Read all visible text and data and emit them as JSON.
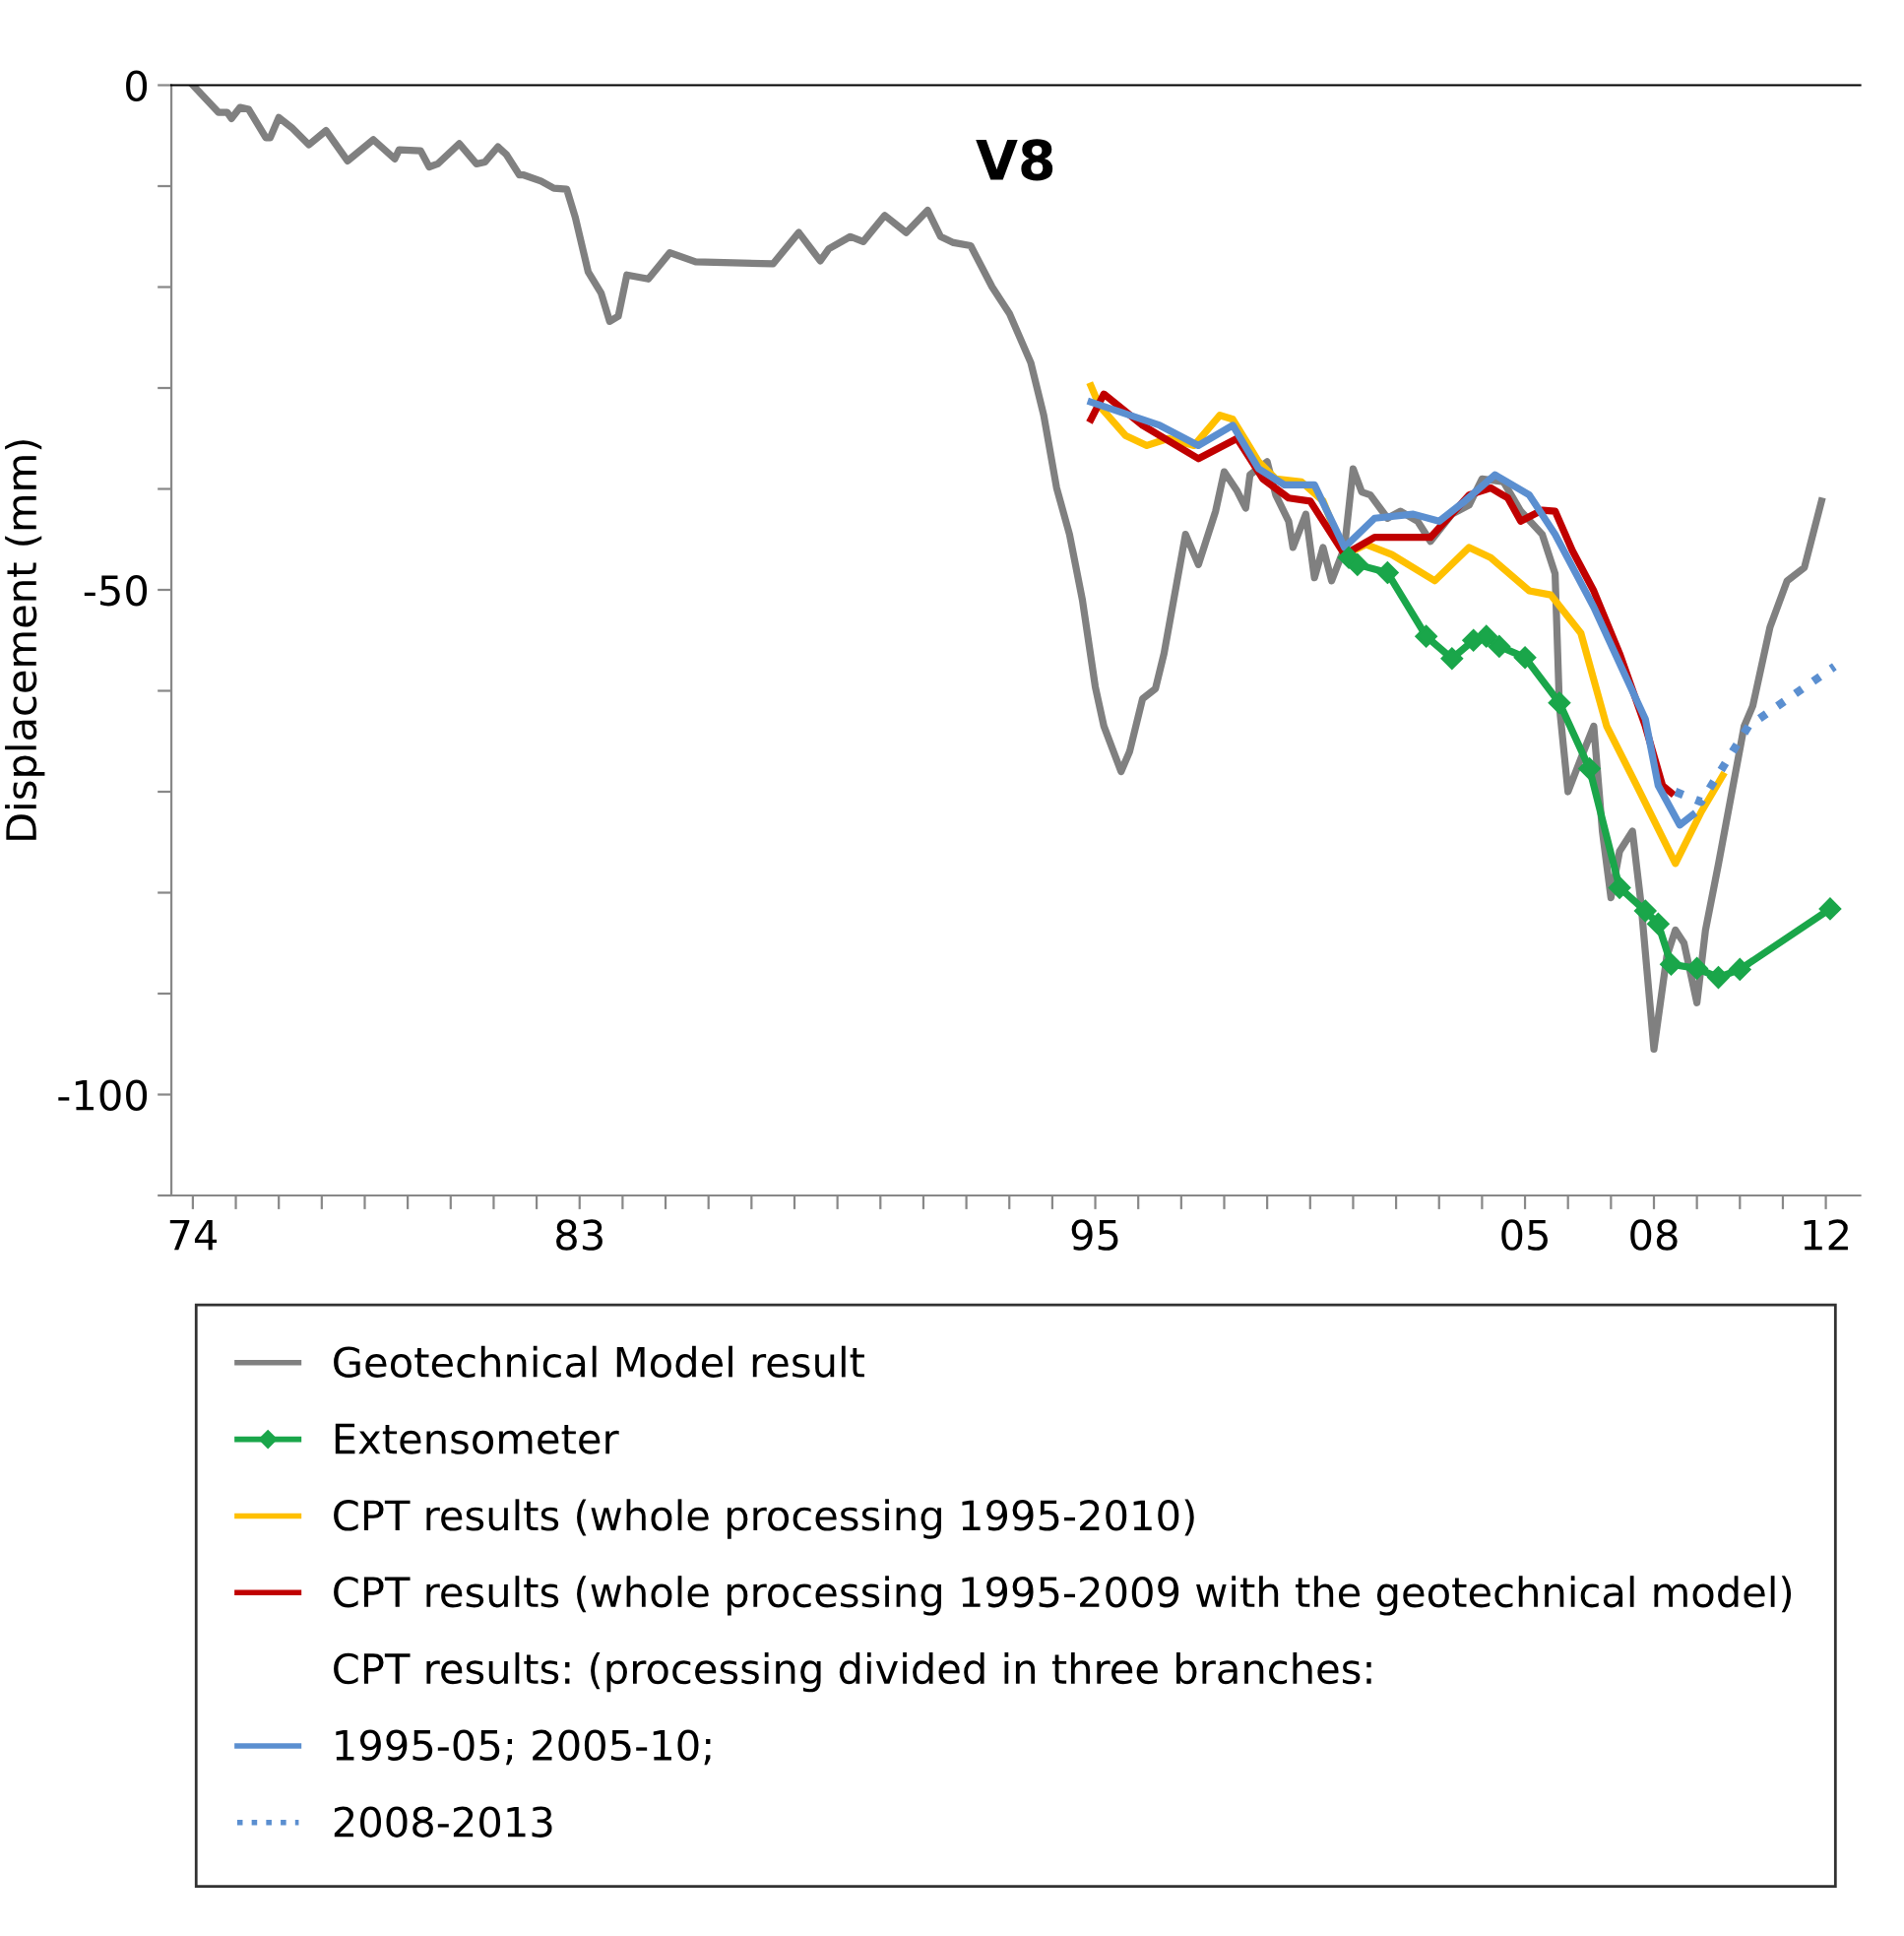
{
  "chart_data": {
    "type": "line",
    "title": "V8",
    "ylabel": "Displacement (mm)",
    "annotations": [
      "CPT results: (processing divided in three branches:"
    ],
    "xlim": [
      1973.5,
      2012.8
    ],
    "ylim": [
      -110,
      0
    ],
    "xticks": [
      {
        "value": 1974,
        "label": "74"
      },
      {
        "value": 1975,
        "label": null
      },
      {
        "value": 1976,
        "label": null
      },
      {
        "value": 1977,
        "label": null
      },
      {
        "value": 1978,
        "label": null
      },
      {
        "value": 1979,
        "label": null
      },
      {
        "value": 1980,
        "label": null
      },
      {
        "value": 1981,
        "label": null
      },
      {
        "value": 1982,
        "label": null
      },
      {
        "value": 1983,
        "label": "83"
      },
      {
        "value": 1984,
        "label": null
      },
      {
        "value": 1985,
        "label": null
      },
      {
        "value": 1986,
        "label": null
      },
      {
        "value": 1987,
        "label": null
      },
      {
        "value": 1988,
        "label": null
      },
      {
        "value": 1989,
        "label": null
      },
      {
        "value": 1990,
        "label": null
      },
      {
        "value": 1991,
        "label": null
      },
      {
        "value": 1992,
        "label": null
      },
      {
        "value": 1993,
        "label": null
      },
      {
        "value": 1994,
        "label": null
      },
      {
        "value": 1995,
        "label": "95"
      },
      {
        "value": 1996,
        "label": null
      },
      {
        "value": 1997,
        "label": null
      },
      {
        "value": 1998,
        "label": null
      },
      {
        "value": 1999,
        "label": null
      },
      {
        "value": 2000,
        "label": null
      },
      {
        "value": 2001,
        "label": null
      },
      {
        "value": 2002,
        "label": null
      },
      {
        "value": 2003,
        "label": null
      },
      {
        "value": 2004,
        "label": null
      },
      {
        "value": 2005,
        "label": "05"
      },
      {
        "value": 2006,
        "label": null
      },
      {
        "value": 2007,
        "label": null
      },
      {
        "value": 2008,
        "label": "08"
      },
      {
        "value": 2009,
        "label": null
      },
      {
        "value": 2010,
        "label": null
      },
      {
        "value": 2011,
        "label": null
      },
      {
        "value": 2012,
        "label": "12"
      }
    ],
    "yticks": [
      0,
      {
        "value": -10,
        "label": null
      },
      {
        "value": -20,
        "label": null
      },
      {
        "value": -30,
        "label": null
      },
      {
        "value": -40,
        "label": null
      },
      -50,
      {
        "value": -60,
        "label": null
      },
      {
        "value": -70,
        "label": null
      },
      {
        "value": -80,
        "label": null
      },
      {
        "value": -90,
        "label": null
      },
      -100,
      {
        "value": -110,
        "label": null
      }
    ],
    "grid": false,
    "legend": "bottom",
    "series": [
      {
        "name": "Geotechnical Model result",
        "color": "#808080",
        "line_style": "solid",
        "marker": "none",
        "x": [
          1974.0,
          1974.6,
          1974.8,
          1974.9,
          1975.1,
          1975.3,
          1975.7,
          1975.8,
          1976.0,
          1976.3,
          1976.7,
          1977.1,
          1977.6,
          1978.2,
          1978.7,
          1978.8,
          1979.3,
          1979.5,
          1979.7,
          1980.2,
          1980.6,
          1980.8,
          1981.1,
          1981.3,
          1981.6,
          1981.7,
          1982.1,
          1982.4,
          1982.7,
          1982.9,
          1983.2,
          1983.5,
          1983.7,
          1983.9,
          1984.1,
          1984.6,
          1985.1,
          1985.7,
          1987.5,
          1988.1,
          1988.6,
          1988.8,
          1989.3,
          1989.6,
          1990.1,
          1990.6,
          1991.1,
          1991.4,
          1991.7,
          1992.1,
          1992.6,
          1993.0,
          1993.5,
          1993.8,
          1994.1,
          1994.4,
          1994.7,
          1995.0,
          1995.2,
          1995.6,
          1995.8,
          1996.1,
          1996.4,
          1996.6,
          1997.1,
          1997.4,
          1997.8,
          1998.0,
          1998.3,
          1998.5,
          1998.6,
          1999.0,
          1999.2,
          1999.5,
          1999.6,
          1999.9,
          2000.1,
          2000.3,
          2000.5,
          2000.8,
          2001.0,
          2001.2,
          2001.4,
          2001.8,
          2002.1,
          2002.5,
          2002.8,
          2003.3,
          2003.7,
          2004.0,
          2004.5,
          2004.9,
          2005.4,
          2005.7,
          2005.8,
          2006.0,
          2006.3,
          2006.6,
          2006.8,
          2007.0,
          2007.2,
          2007.5,
          2007.7,
          2008.0,
          2008.3,
          2008.5,
          2008.7,
          2009.0,
          2009.2,
          2009.5,
          2010.1,
          2010.3,
          2010.7,
          2011.1,
          2011.5,
          2011.9
        ],
        "values": [
          0,
          -2.7,
          -2.7,
          -3.3,
          -2.2,
          -2.4,
          -5.2,
          -5.2,
          -3.2,
          -4.2,
          -5.9,
          -4.5,
          -7.5,
          -5.4,
          -7.3,
          -6.4,
          -6.5,
          -8.1,
          -7.8,
          -5.8,
          -7.8,
          -7.6,
          -6.1,
          -6.9,
          -8.9,
          -8.9,
          -9.5,
          -10.2,
          -10.3,
          -13.1,
          -18.5,
          -20.6,
          -23.4,
          -22.9,
          -18.8,
          -19.2,
          -16.6,
          -17.5,
          -17.7,
          -14.6,
          -17.4,
          -16.2,
          -15,
          -15.5,
          -12.9,
          -14.6,
          -12.4,
          -15,
          -15.6,
          -15.9,
          -20,
          -22.6,
          -27.5,
          -32.7,
          -39.9,
          -44.5,
          -51,
          -59.6,
          -63.5,
          -68,
          -66,
          -60.8,
          -59.8,
          -56.3,
          -44.5,
          -47.5,
          -42.2,
          -38.3,
          -40.2,
          -41.9,
          -38.6,
          -37.3,
          -40.6,
          -43.2,
          -45.8,
          -42.5,
          -48.8,
          -45.8,
          -49.1,
          -45.8,
          -38,
          -40.3,
          -40.6,
          -42.9,
          -42.2,
          -43.2,
          -45.2,
          -42.5,
          -41.6,
          -39,
          -39.3,
          -42.2,
          -44.5,
          -48.4,
          -61.5,
          -70,
          -66.7,
          -63.5,
          -73.9,
          -80.5,
          -75.9,
          -73.9,
          -81.1,
          -95.5,
          -86.3,
          -83.7,
          -85,
          -90.9,
          -83.7,
          -77.2,
          -63.5,
          -61.5,
          -53.7,
          -49.1,
          -47.8,
          -41.2
        ]
      },
      {
        "name": "Extensometer",
        "color": "#1aa64a",
        "line_style": "solid",
        "marker": "diamond",
        "x": [
          2000.9,
          2001.1,
          2001.8,
          2002.7,
          2003.3,
          2003.8,
          2004.1,
          2004.4,
          2005.0,
          2005.8,
          2006.5,
          2007.2,
          2007.8,
          2008.1,
          2008.4,
          2009.0,
          2009.5,
          2010.0,
          2012.1
        ],
        "values": [
          -46.8,
          -47.5,
          -48.3,
          -54.6,
          -56.8,
          -55,
          -54.6,
          -55.6,
          -56.7,
          -61.2,
          -67.7,
          -79.5,
          -81.8,
          -83.1,
          -87.1,
          -87.5,
          -88.4,
          -87.6,
          -81.6
        ]
      },
      {
        "name": "CPT results (whole processing 1995-2010)",
        "color": "#ffc000",
        "line_style": "solid",
        "marker": "none",
        "x": [
          1994.9,
          1995.1,
          1995.7,
          1996.2,
          1996.7,
          1997.3,
          1997.9,
          1998.2,
          1998.8,
          1999.2,
          1999.8,
          2000.3,
          2000.8,
          2001.3,
          2001.9,
          2002.9,
          2003.7,
          2004.2,
          2005.1,
          2005.6,
          2006.3,
          2006.9,
          2007.6,
          2008.5,
          2009.1,
          2009.6
        ],
        "values": [
          -29.8,
          -31.8,
          -34.7,
          -35.7,
          -35,
          -35.7,
          -32.7,
          -33.1,
          -37.3,
          -39,
          -39.3,
          -41.2,
          -46.5,
          -45.5,
          -46.5,
          -49.1,
          -45.8,
          -46.8,
          -50.1,
          -50.5,
          -54.3,
          -63.5,
          -69.4,
          -77.1,
          -72,
          -68.4
        ]
      },
      {
        "name": "CPT results (whole processing 1995-2009 with the geotechnical model)",
        "color": "#c00000",
        "line_style": "solid",
        "marker": "none",
        "x": [
          1994.9,
          1995.2,
          1996.1,
          1997.4,
          1998.3,
          1998.9,
          1999.5,
          2000.0,
          2000.8,
          2001.5,
          2002.8,
          2003.7,
          2004.2,
          2004.6,
          2004.9,
          2005.4,
          2005.7,
          2006.1,
          2006.6,
          2007.2,
          2007.8,
          2008.2,
          2008.4
        ],
        "values": [
          -33.1,
          -30.6,
          -33.7,
          -37,
          -35,
          -39,
          -40.9,
          -41.2,
          -46.5,
          -44.8,
          -44.8,
          -40.6,
          -39.9,
          -40.9,
          -43.2,
          -42.1,
          -42.2,
          -46.1,
          -50.1,
          -56.3,
          -63.5,
          -69.4,
          -70.1
        ]
      },
      {
        "name": "1995-05; 2005-10;",
        "color": "#5b8fd0",
        "line_style": "solid",
        "marker": "none",
        "x": [
          1994.9,
          1996.5,
          1997.4,
          1998.2,
          1998.8,
          1999.4,
          2000.1,
          2000.8,
          2001.5,
          2002.4,
          2003.0,
          2003.6,
          2004.3,
          2005.1,
          2005.7,
          2006.6,
          2007.3,
          2007.8,
          2008.1,
          2008.6,
          2008.9
        ],
        "values": [
          -31.4,
          -33.7,
          -35.7,
          -33.7,
          -38,
          -39.6,
          -39.6,
          -45.8,
          -42.9,
          -42.5,
          -43.2,
          -41.2,
          -38.6,
          -40.6,
          -44.5,
          -51.7,
          -58.2,
          -62.8,
          -69.4,
          -73.3,
          -72.3
        ]
      },
      {
        "name": "2008-2013",
        "color": "#5b8fd0",
        "line_style": "dotted",
        "marker": "none",
        "x": [
          2008.5,
          2009.1,
          2010.2,
          2012.2
        ],
        "values": [
          -70,
          -71,
          -63.5,
          -57.6
        ]
      }
    ]
  }
}
